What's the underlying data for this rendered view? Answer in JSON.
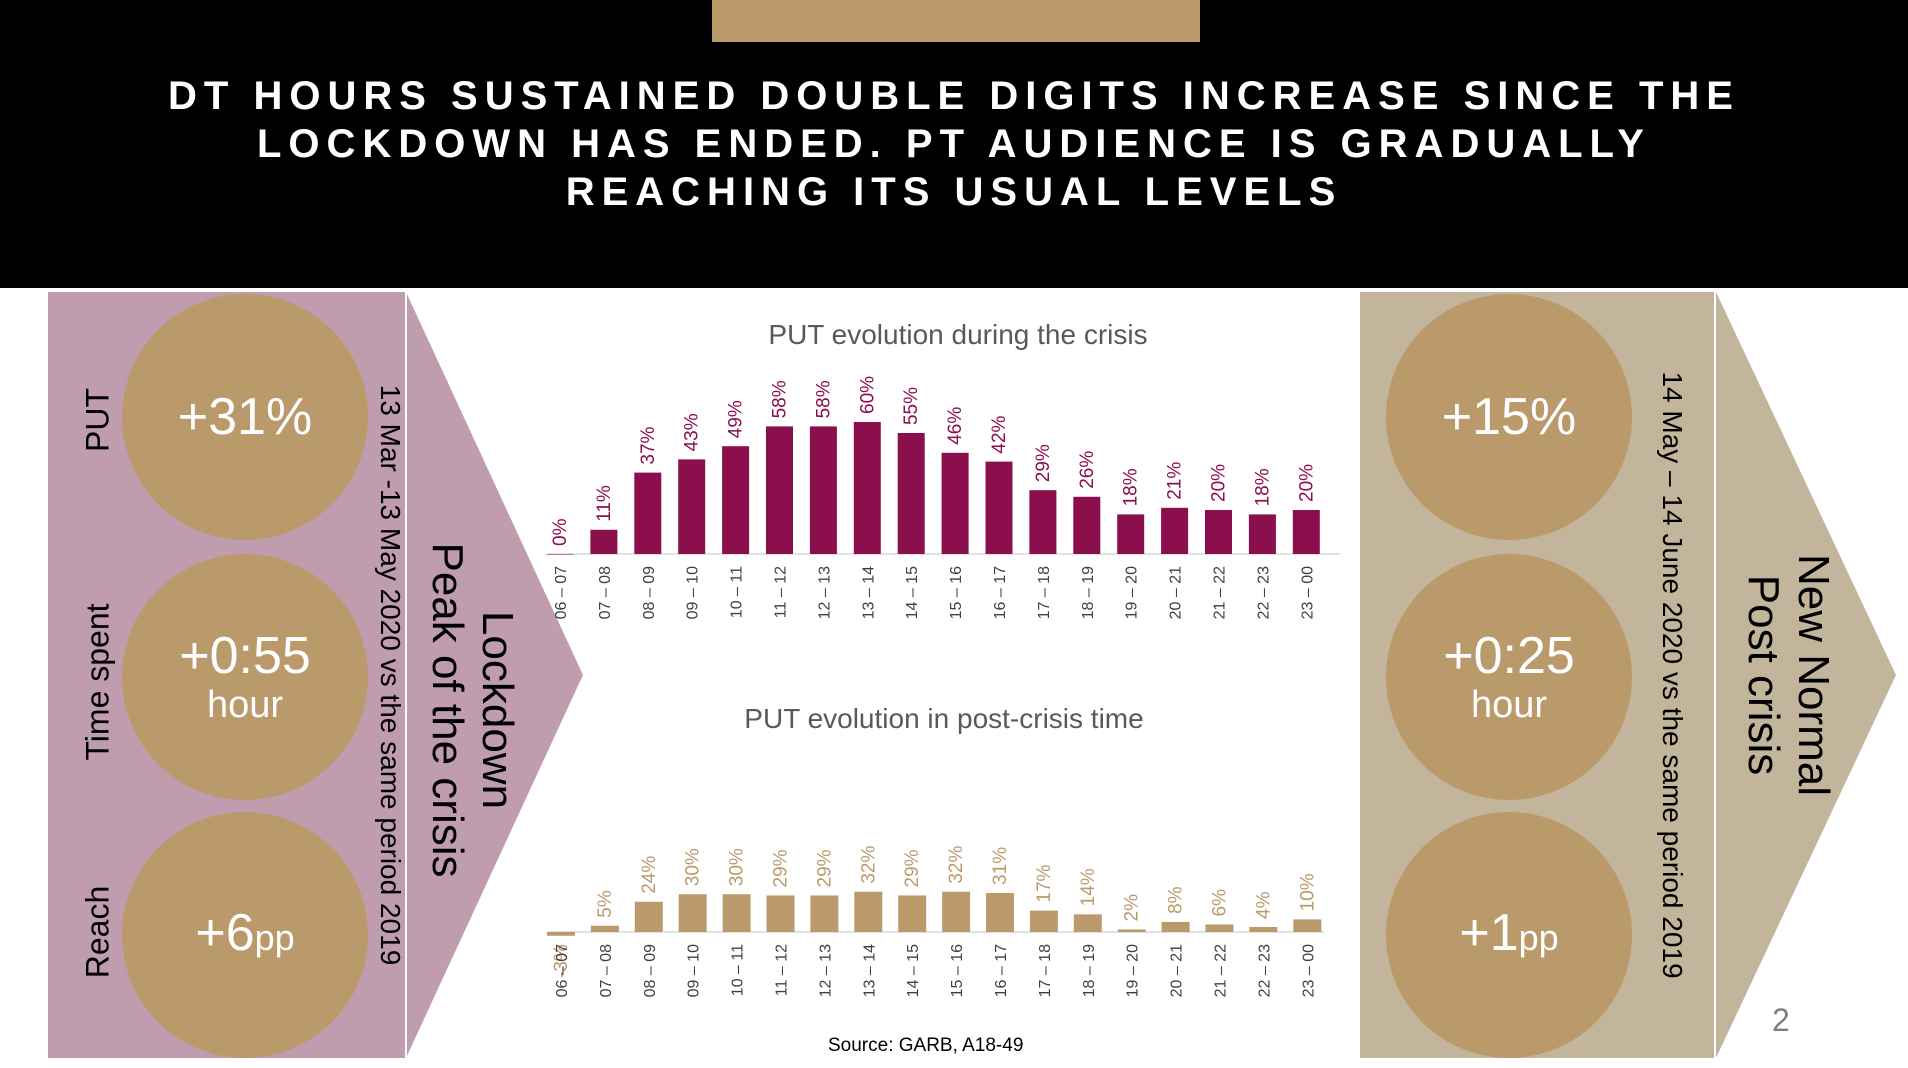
{
  "title": "DT HOURS SUSTAINED DOUBLE DIGITS INCREASE SINCE THE LOCKDOWN HAS ENDED. PT AUDIENCE IS GRADUALLY REACHING ITS USUAL LEVELS",
  "colors": {
    "header_bg": "#000000",
    "gold": "#BA9A6A",
    "lockdown_panel": "#BF9DAE",
    "post_panel": "#C2B59B",
    "crisis_bars": "#8B0E4D"
  },
  "left_panel": {
    "phase_line1": "Lockdown",
    "phase_line2": "Peak of the crisis",
    "period": "13 Mar -13 May 2020 vs the same period 2019",
    "metrics": [
      {
        "label": "PUT",
        "value": "+31%",
        "unit": ""
      },
      {
        "label": "Time spent",
        "value": "+0:55",
        "unit": "hour"
      },
      {
        "label": "Reach",
        "value": "+6",
        "unit": "pp"
      }
    ]
  },
  "right_panel": {
    "phase_line1": "New Normal",
    "phase_line2": "Post crisis",
    "period": "14 May – 14 June 2020 vs the same period 2019",
    "metrics": [
      {
        "value": "+15%",
        "unit": ""
      },
      {
        "value": "+0:25",
        "unit": "hour"
      },
      {
        "value": "+1",
        "unit": "pp"
      }
    ]
  },
  "chart_data": [
    {
      "type": "bar",
      "title": "PUT evolution during the crisis",
      "categories": [
        "06 – 07",
        "07 – 08",
        "08 – 09",
        "09 – 10",
        "10 – 11",
        "11 – 12",
        "12 – 13",
        "13 – 14",
        "14 – 15",
        "15 – 16",
        "16 – 17",
        "17 – 18",
        "18 – 19",
        "19 – 20",
        "20 – 21",
        "21 – 22",
        "22 – 23",
        "23 – 00"
      ],
      "values": [
        0,
        11,
        37,
        43,
        49,
        58,
        58,
        60,
        55,
        46,
        42,
        29,
        26,
        18,
        21,
        20,
        18,
        20
      ],
      "labels": [
        "0%",
        "11%",
        "37%",
        "43%",
        "49%",
        "58%",
        "58%",
        "60%",
        "55%",
        "46%",
        "42%",
        "29%",
        "26%",
        "18%",
        "21%",
        "20%",
        "18%",
        "20%"
      ],
      "color": "#8B0E4D",
      "label_color": "#8B0E4D",
      "ylim": [
        0,
        60
      ]
    },
    {
      "type": "bar",
      "title": "PUT evolution in post-crisis time",
      "categories": [
        "06 – 07",
        "07 – 08",
        "08 – 09",
        "09 – 10",
        "10 – 11",
        "11 – 12",
        "12 – 13",
        "13 – 14",
        "14 – 15",
        "15 – 16",
        "16 – 17",
        "17 – 18",
        "18 – 19",
        "19 – 20",
        "20 – 21",
        "21 – 22",
        "22 – 23",
        "23 – 00"
      ],
      "values": [
        -3,
        5,
        24,
        30,
        30,
        29,
        29,
        32,
        29,
        32,
        31,
        17,
        14,
        2,
        8,
        6,
        4,
        10
      ],
      "labels": [
        "-3%",
        "5%",
        "24%",
        "30%",
        "30%",
        "29%",
        "29%",
        "32%",
        "29%",
        "32%",
        "31%",
        "17%",
        "14%",
        "2%",
        "8%",
        "6%",
        "4%",
        "10%"
      ],
      "color": "#BA9A6A",
      "label_color": "#BA9A6A",
      "ylim": [
        -3,
        32
      ]
    }
  ],
  "source": "Source: GARB, A18-49",
  "page_number": "2"
}
